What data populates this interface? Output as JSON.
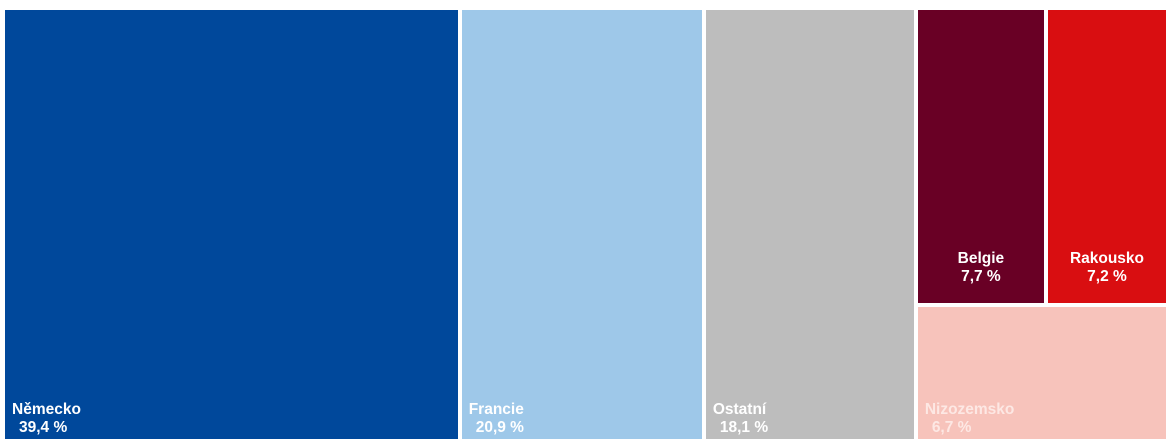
{
  "chart_data": {
    "type": "treemap",
    "unit": "%",
    "items": [
      {
        "name": "Německo",
        "value": 39.4,
        "value_label": "39,4 %",
        "color": "#00489b",
        "label_color": "#ffffff"
      },
      {
        "name": "Francie",
        "value": 20.9,
        "value_label": "20,9 %",
        "color": "#9ec8e9",
        "label_color": "#ffffff"
      },
      {
        "name": "Ostatní",
        "value": 18.1,
        "value_label": "18,1 %",
        "color": "#bdbdbd",
        "label_color": "#ffffff"
      },
      {
        "name": "Belgie",
        "value": 7.7,
        "value_label": "7,7 %",
        "color": "#690025",
        "label_color": "#ffffff"
      },
      {
        "name": "Rakousko",
        "value": 7.2,
        "value_label": "7,2 %",
        "color": "#d90e11",
        "label_color": "#ffffff"
      },
      {
        "name": "Nizozemsko",
        "value": 6.7,
        "value_label": "6,7 %",
        "color": "#f7c3bb",
        "label_color": "#fde8e4"
      }
    ]
  }
}
